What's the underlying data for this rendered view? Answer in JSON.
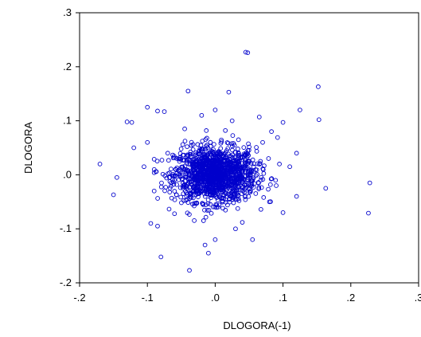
{
  "chart_data": {
    "type": "scatter",
    "xlabel": "DLOGORA(-1)",
    "ylabel": "DLOGORA",
    "xlim": [
      -0.2,
      0.3
    ],
    "ylim": [
      -0.2,
      0.3
    ],
    "x_ticks": [
      -0.2,
      -0.1,
      0.0,
      0.1,
      0.2,
      0.3
    ],
    "x_tick_labels": [
      "-.2",
      "-.1",
      ".0",
      ".1",
      ".2",
      ".3"
    ],
    "y_ticks": [
      -0.2,
      -0.1,
      0.0,
      0.1,
      0.2,
      0.3
    ],
    "y_tick_labels": [
      "-.2",
      "-.1",
      ".0",
      ".1",
      ".2",
      ".3"
    ],
    "grid": false,
    "marker": "open-circle",
    "marker_color": "#0000cc",
    "series": [
      {
        "points": [
          [
            0.045,
            0.227
          ],
          [
            0.048,
            0.226
          ],
          [
            -0.04,
            0.155
          ],
          [
            0.02,
            0.153
          ],
          [
            0.152,
            0.163
          ],
          [
            -0.1,
            0.125
          ],
          [
            -0.085,
            0.118
          ],
          [
            -0.075,
            0.117
          ],
          [
            0.0,
            0.12
          ],
          [
            0.125,
            0.12
          ],
          [
            0.065,
            0.107
          ],
          [
            -0.13,
            0.098
          ],
          [
            -0.123,
            0.097
          ],
          [
            0.153,
            0.102
          ],
          [
            0.1,
            0.097
          ],
          [
            0.083,
            0.08
          ],
          [
            0.092,
            0.069
          ],
          [
            -0.17,
            0.02
          ],
          [
            -0.145,
            -0.005
          ],
          [
            -0.15,
            -0.037
          ],
          [
            0.163,
            -0.025
          ],
          [
            0.228,
            -0.015
          ],
          [
            0.226,
            -0.071
          ],
          [
            -0.08,
            -0.152
          ],
          [
            -0.038,
            -0.177
          ],
          [
            -0.015,
            -0.13
          ],
          [
            -0.01,
            -0.145
          ],
          [
            0.0,
            -0.12
          ],
          [
            0.055,
            -0.12
          ],
          [
            -0.095,
            -0.09
          ],
          [
            -0.085,
            -0.095
          ],
          [
            0.1,
            -0.07
          ],
          [
            0.12,
            -0.04
          ],
          [
            0.12,
            0.04
          ],
          [
            -0.12,
            0.05
          ],
          [
            -0.1,
            0.06
          ],
          [
            -0.105,
            0.015
          ],
          [
            0.11,
            0.015
          ],
          [
            0.015,
            0.082
          ],
          [
            -0.045,
            0.085
          ],
          [
            0.04,
            -0.088
          ],
          [
            -0.06,
            -0.072
          ],
          [
            0.07,
            0.06
          ],
          [
            -0.07,
            0.04
          ],
          [
            0.09,
            -0.02
          ],
          [
            0.08,
            -0.05
          ],
          [
            -0.09,
            -0.03
          ],
          [
            0.025,
            0.1
          ],
          [
            -0.02,
            0.11
          ],
          [
            0.03,
            -0.1
          ]
        ],
        "cluster": {
          "description": "dense cloud of many overlapping points",
          "center": [
            0.0,
            0.0
          ],
          "spread_sd": [
            0.03,
            0.025
          ],
          "count": 1400
        }
      }
    ]
  }
}
